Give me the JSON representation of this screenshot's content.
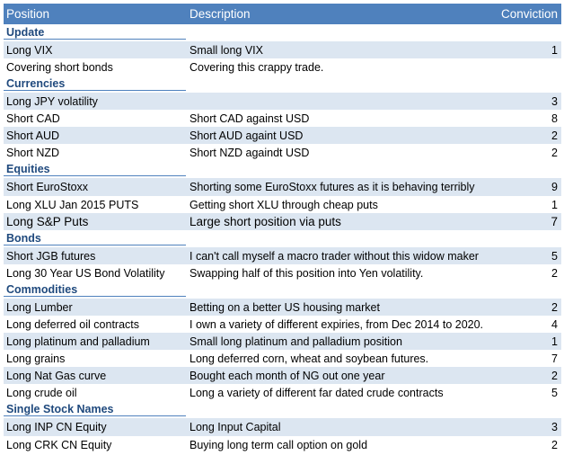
{
  "headers": {
    "position": "Position",
    "description": "Description",
    "conviction": "Conviction"
  },
  "sections": [
    {
      "title": "Update",
      "rows": [
        {
          "position": "Long VIX",
          "description": "Small long VIX",
          "conviction": "1"
        },
        {
          "position": "Covering short bonds",
          "description": "Covering this crappy trade.",
          "conviction": ""
        }
      ]
    },
    {
      "title": "Currencies",
      "rows": [
        {
          "position": "Long JPY volatility",
          "description": "",
          "conviction": "3"
        },
        {
          "position": "Short CAD",
          "description": "Short CAD against USD",
          "conviction": "8"
        },
        {
          "position": "Short AUD",
          "description": "Short AUD againt USD",
          "conviction": "2"
        },
        {
          "position": "Short NZD",
          "description": "Short NZD againdt USD",
          "conviction": "2"
        }
      ]
    },
    {
      "title": "Equities",
      "rows": [
        {
          "position": "Short EuroStoxx",
          "description": "Shorting some EuroStoxx futures as it is behaving terribly",
          "conviction": "9"
        },
        {
          "position": "Long XLU Jan 2015 PUTS",
          "description": "Getting short XLU through cheap puts",
          "conviction": "1"
        },
        {
          "position": "Long S&P Puts",
          "description": "Large short position via puts",
          "conviction": "7"
        }
      ]
    },
    {
      "title": "Bonds",
      "rows": [
        {
          "position": "Short JGB futures",
          "description": "I can't call myself a macro trader without this widow maker",
          "conviction": "5"
        },
        {
          "position": "Long 30 Year US Bond Volatility",
          "description": "Swapping half of this position into Yen volatility.",
          "conviction": "2"
        }
      ]
    },
    {
      "title": "Commodities",
      "rows": [
        {
          "position": "Long Lumber",
          "description": "Betting on a better US housing market",
          "conviction": "2"
        },
        {
          "position": "Long deferred oil contracts",
          "description": "I own a variety of different expiries, from Dec 2014 to 2020.",
          "conviction": "4"
        },
        {
          "position": "Long platinum and palladium",
          "description": "Small long platinum and palladium position",
          "conviction": "1"
        },
        {
          "position": "Long grains",
          "description": "Long deferred corn, wheat and soybean futures.",
          "conviction": "7"
        },
        {
          "position": "Long Nat Gas curve",
          "description": "Bought each month of NG out one year",
          "conviction": "2"
        },
        {
          "position": "Long crude oil",
          "description": "Long a variety of different far dated crude contracts",
          "conviction": "5"
        }
      ]
    },
    {
      "title": "Single Stock Names",
      "rows": [
        {
          "position": "Long INP CN Equity",
          "description": "Long Input Capital",
          "conviction": "3"
        },
        {
          "position": "Long CRK CN Equity",
          "description": "Buying long term call option on gold",
          "conviction": "2"
        }
      ]
    }
  ]
}
